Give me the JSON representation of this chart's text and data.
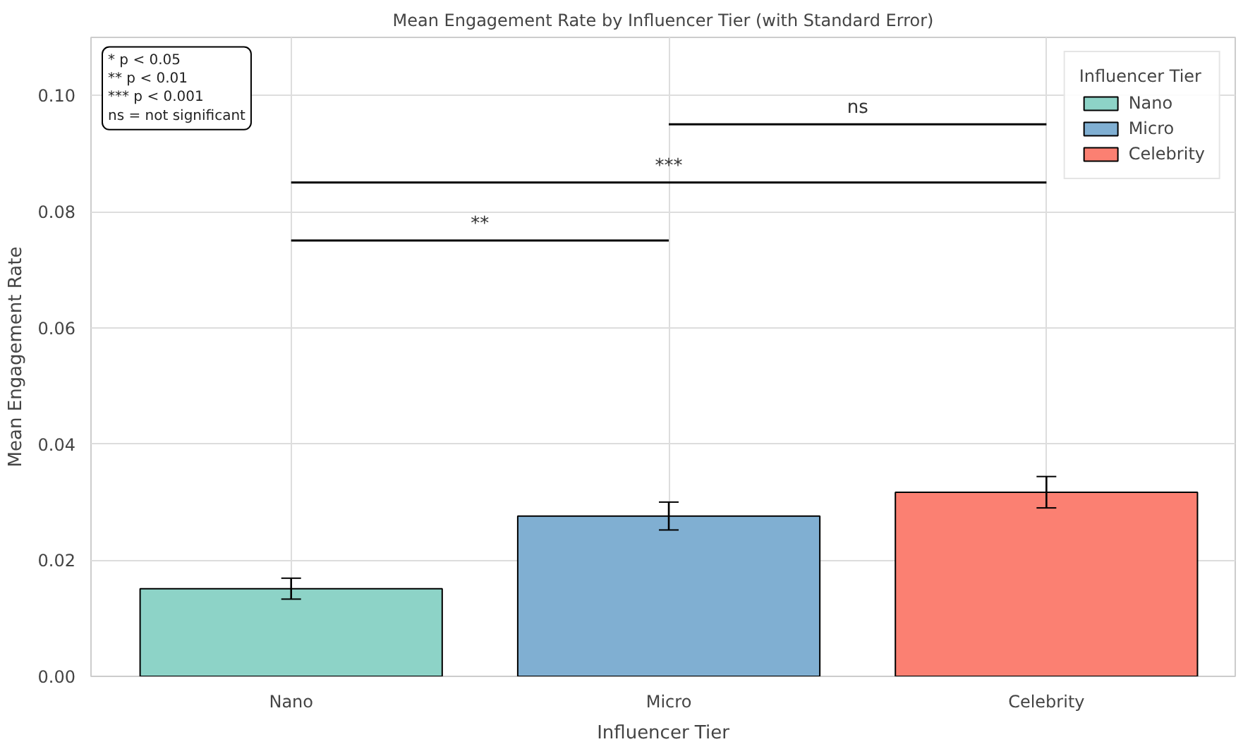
{
  "chart_data": {
    "type": "bar",
    "title": "Mean Engagement Rate by Influencer Tier (with Standard Error)",
    "xlabel": "Influencer Tier",
    "ylabel": "Mean Engagement Rate",
    "legend_title": "Influencer Tier",
    "categories": [
      "Nano",
      "Micro",
      "Celebrity"
    ],
    "series": [
      {
        "name": "Nano",
        "color": "#8dd3c7",
        "values": [
          0.0151,
          null,
          null
        ],
        "errors": [
          0.0018,
          null,
          null
        ]
      },
      {
        "name": "Micro",
        "color": "#80afd2",
        "values": [
          null,
          0.0276,
          null
        ],
        "errors": [
          null,
          0.0024,
          null
        ]
      },
      {
        "name": "Celebrity",
        "color": "#fb8072",
        "values": [
          null,
          null,
          0.0317
        ],
        "errors": [
          null,
          null,
          0.0027
        ]
      }
    ],
    "ylim": [
      0,
      0.11
    ],
    "yticks": [
      {
        "value": 0,
        "label": "0.00"
      },
      {
        "value": 0.02,
        "label": "0.02"
      },
      {
        "value": 0.04,
        "label": "0.04"
      },
      {
        "value": 0.06,
        "label": "0.06"
      },
      {
        "value": 0.08,
        "label": "0.08"
      },
      {
        "value": 0.1,
        "label": "0.10"
      }
    ],
    "grid": true,
    "legend": "top right",
    "annotations": [
      "**",
      "***",
      "ns",
      "* p < 0.05\n** p < 0.01\n*** p < 0.001\nns = not significant"
    ]
  }
}
